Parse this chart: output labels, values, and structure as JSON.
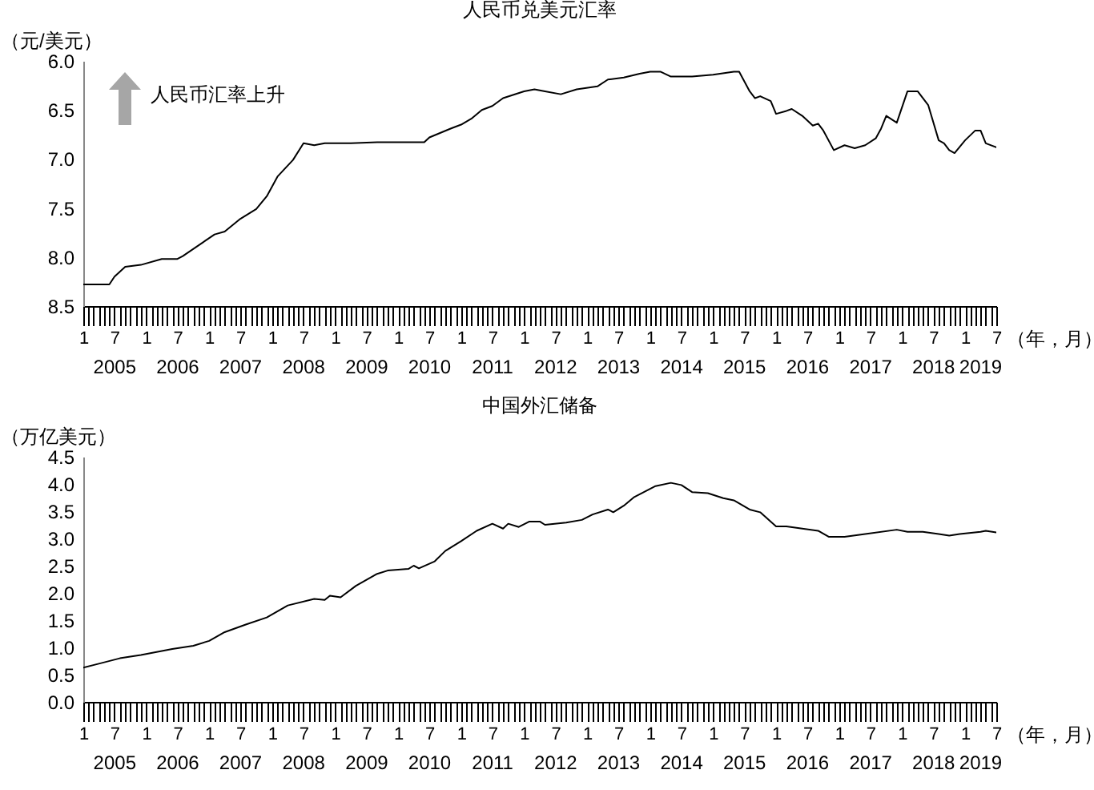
{
  "chart_data": [
    {
      "type": "line",
      "title": "人民币兑美元汇率",
      "ylabel": "（元/美元）",
      "xlabel": "（年，月）",
      "xlim": [
        "2005-01",
        "2019-07"
      ],
      "ylim": [
        8.5,
        6.0
      ],
      "yticks": [
        {
          "value": 6,
          "label": "6.0"
        },
        {
          "value": 6.5,
          "label": "6.5"
        },
        {
          "value": 7,
          "label": "7.0"
        },
        {
          "value": 7.5,
          "label": "7.5"
        },
        {
          "value": 8,
          "label": "8.0"
        },
        {
          "value": 8.5,
          "label": "8.5"
        }
      ],
      "xticks": [
        {
          "value": "2005-01",
          "label": "1"
        },
        {
          "value": "2005-02",
          "label": null
        },
        {
          "value": "2005-03",
          "label": null
        },
        {
          "value": "2005-04",
          "label": null
        },
        {
          "value": "2005-05",
          "label": null
        },
        {
          "value": "2005-06",
          "label": null
        },
        {
          "value": "2005-07",
          "label": "7"
        },
        {
          "value": "2005-08",
          "label": null
        },
        {
          "value": "2005-09",
          "label": null
        },
        {
          "value": "2005-10",
          "label": null
        },
        {
          "value": "2005-11",
          "label": null
        },
        {
          "value": "2005-12",
          "label": null
        },
        {
          "value": "2006-01",
          "label": "1"
        },
        {
          "value": "2006-02",
          "label": null
        },
        {
          "value": "2006-03",
          "label": null
        },
        {
          "value": "2006-04",
          "label": null
        },
        {
          "value": "2006-05",
          "label": null
        },
        {
          "value": "2006-06",
          "label": null
        },
        {
          "value": "2006-07",
          "label": "7"
        },
        {
          "value": "2006-08",
          "label": null
        },
        {
          "value": "2006-09",
          "label": null
        },
        {
          "value": "2006-10",
          "label": null
        },
        {
          "value": "2006-11",
          "label": null
        },
        {
          "value": "2006-12",
          "label": null
        },
        {
          "value": "2007-01",
          "label": "1"
        },
        {
          "value": "2007-02",
          "label": null
        },
        {
          "value": "2007-03",
          "label": null
        },
        {
          "value": "2007-04",
          "label": null
        },
        {
          "value": "2007-05",
          "label": null
        },
        {
          "value": "2007-06",
          "label": null
        },
        {
          "value": "2007-07",
          "label": "7"
        },
        {
          "value": "2007-08",
          "label": null
        },
        {
          "value": "2007-09",
          "label": null
        },
        {
          "value": "2007-10",
          "label": null
        },
        {
          "value": "2007-11",
          "label": null
        },
        {
          "value": "2007-12",
          "label": null
        },
        {
          "value": "2008-01",
          "label": "1"
        },
        {
          "value": "2008-02",
          "label": null
        },
        {
          "value": "2008-03",
          "label": null
        },
        {
          "value": "2008-04",
          "label": null
        },
        {
          "value": "2008-05",
          "label": null
        },
        {
          "value": "2008-06",
          "label": null
        },
        {
          "value": "2008-07",
          "label": "7"
        },
        {
          "value": "2008-08",
          "label": null
        },
        {
          "value": "2008-09",
          "label": null
        },
        {
          "value": "2008-10",
          "label": null
        },
        {
          "value": "2008-11",
          "label": null
        },
        {
          "value": "2008-12",
          "label": null
        },
        {
          "value": "2009-01",
          "label": "1"
        },
        {
          "value": "2009-02",
          "label": null
        },
        {
          "value": "2009-03",
          "label": null
        },
        {
          "value": "2009-04",
          "label": null
        },
        {
          "value": "2009-05",
          "label": null
        },
        {
          "value": "2009-06",
          "label": null
        },
        {
          "value": "2009-07",
          "label": "7"
        },
        {
          "value": "2009-08",
          "label": null
        },
        {
          "value": "2009-09",
          "label": null
        },
        {
          "value": "2009-10",
          "label": null
        },
        {
          "value": "2009-11",
          "label": null
        },
        {
          "value": "2009-12",
          "label": null
        },
        {
          "value": "2010-01",
          "label": "1"
        },
        {
          "value": "2010-02",
          "label": null
        },
        {
          "value": "2010-03",
          "label": null
        },
        {
          "value": "2010-04",
          "label": null
        },
        {
          "value": "2010-05",
          "label": null
        },
        {
          "value": "2010-06",
          "label": null
        },
        {
          "value": "2010-07",
          "label": "7"
        },
        {
          "value": "2010-08",
          "label": null
        },
        {
          "value": "2010-09",
          "label": null
        },
        {
          "value": "2010-10",
          "label": null
        },
        {
          "value": "2010-11",
          "label": null
        },
        {
          "value": "2010-12",
          "label": null
        },
        {
          "value": "2011-01",
          "label": "1"
        },
        {
          "value": "2011-02",
          "label": null
        },
        {
          "value": "2011-03",
          "label": null
        },
        {
          "value": "2011-04",
          "label": null
        },
        {
          "value": "2011-05",
          "label": null
        },
        {
          "value": "2011-06",
          "label": null
        },
        {
          "value": "2011-07",
          "label": "7"
        },
        {
          "value": "2011-08",
          "label": null
        },
        {
          "value": "2011-09",
          "label": null
        },
        {
          "value": "2011-10",
          "label": null
        },
        {
          "value": "2011-11",
          "label": null
        },
        {
          "value": "2011-12",
          "label": null
        },
        {
          "value": "2012-01",
          "label": "1"
        },
        {
          "value": "2012-02",
          "label": null
        },
        {
          "value": "2012-03",
          "label": null
        },
        {
          "value": "2012-04",
          "label": null
        },
        {
          "value": "2012-05",
          "label": null
        },
        {
          "value": "2012-06",
          "label": null
        },
        {
          "value": "2012-07",
          "label": "7"
        },
        {
          "value": "2012-08",
          "label": null
        },
        {
          "value": "2012-09",
          "label": null
        },
        {
          "value": "2012-10",
          "label": null
        },
        {
          "value": "2012-11",
          "label": null
        },
        {
          "value": "2012-12",
          "label": null
        },
        {
          "value": "2013-01",
          "label": "1"
        },
        {
          "value": "2013-02",
          "label": null
        },
        {
          "value": "2013-03",
          "label": null
        },
        {
          "value": "2013-04",
          "label": null
        },
        {
          "value": "2013-05",
          "label": null
        },
        {
          "value": "2013-06",
          "label": null
        },
        {
          "value": "2013-07",
          "label": "7"
        },
        {
          "value": "2013-08",
          "label": null
        },
        {
          "value": "2013-09",
          "label": null
        },
        {
          "value": "2013-10",
          "label": null
        },
        {
          "value": "2013-11",
          "label": null
        },
        {
          "value": "2013-12",
          "label": null
        },
        {
          "value": "2014-01",
          "label": "1"
        },
        {
          "value": "2014-02",
          "label": null
        },
        {
          "value": "2014-03",
          "label": null
        },
        {
          "value": "2014-04",
          "label": null
        },
        {
          "value": "2014-05",
          "label": null
        },
        {
          "value": "2014-06",
          "label": null
        },
        {
          "value": "2014-07",
          "label": "7"
        },
        {
          "value": "2014-08",
          "label": null
        },
        {
          "value": "2014-09",
          "label": null
        },
        {
          "value": "2014-10",
          "label": null
        },
        {
          "value": "2014-11",
          "label": null
        },
        {
          "value": "2014-12",
          "label": null
        },
        {
          "value": "2015-01",
          "label": "1"
        },
        {
          "value": "2015-02",
          "label": null
        },
        {
          "value": "2015-03",
          "label": null
        },
        {
          "value": "2015-04",
          "label": null
        },
        {
          "value": "2015-05",
          "label": null
        },
        {
          "value": "2015-06",
          "label": null
        },
        {
          "value": "2015-07",
          "label": "7"
        },
        {
          "value": "2015-08",
          "label": null
        },
        {
          "value": "2015-09",
          "label": null
        },
        {
          "value": "2015-10",
          "label": null
        },
        {
          "value": "2015-11",
          "label": null
        },
        {
          "value": "2015-12",
          "label": null
        },
        {
          "value": "2016-01",
          "label": "1"
        },
        {
          "value": "2016-02",
          "label": null
        },
        {
          "value": "2016-03",
          "label": null
        },
        {
          "value": "2016-04",
          "label": null
        },
        {
          "value": "2016-05",
          "label": null
        },
        {
          "value": "2016-06",
          "label": null
        },
        {
          "value": "2016-07",
          "label": "7"
        },
        {
          "value": "2016-08",
          "label": null
        },
        {
          "value": "2016-09",
          "label": null
        },
        {
          "value": "2016-10",
          "label": null
        },
        {
          "value": "2016-11",
          "label": null
        },
        {
          "value": "2016-12",
          "label": null
        },
        {
          "value": "2017-01",
          "label": "1"
        },
        {
          "value": "2017-02",
          "label": null
        },
        {
          "value": "2017-03",
          "label": null
        },
        {
          "value": "2017-04",
          "label": null
        },
        {
          "value": "2017-05",
          "label": null
        },
        {
          "value": "2017-06",
          "label": null
        },
        {
          "value": "2017-07",
          "label": "7"
        },
        {
          "value": "2017-08",
          "label": null
        },
        {
          "value": "2017-09",
          "label": null
        },
        {
          "value": "2017-10",
          "label": null
        },
        {
          "value": "2017-11",
          "label": null
        },
        {
          "value": "2017-12",
          "label": null
        },
        {
          "value": "2018-01",
          "label": "1"
        },
        {
          "value": "2018-02",
          "label": null
        },
        {
          "value": "2018-03",
          "label": null
        },
        {
          "value": "2018-04",
          "label": null
        },
        {
          "value": "2018-05",
          "label": null
        },
        {
          "value": "2018-06",
          "label": null
        },
        {
          "value": "2018-07",
          "label": "7"
        },
        {
          "value": "2018-08",
          "label": null
        },
        {
          "value": "2018-09",
          "label": null
        },
        {
          "value": "2018-10",
          "label": null
        },
        {
          "value": "2018-11",
          "label": null
        },
        {
          "value": "2018-12",
          "label": null
        },
        {
          "value": "2019-01",
          "label": "1"
        },
        {
          "value": "2019-02",
          "label": null
        },
        {
          "value": "2019-03",
          "label": null
        },
        {
          "value": "2019-04",
          "label": null
        },
        {
          "value": "2019-05",
          "label": null
        },
        {
          "value": "2019-06",
          "label": null
        },
        {
          "value": "2019-07",
          "label": "7"
        }
      ],
      "annotations": [
        "人民币汇率上升",
        "2005",
        "2006",
        "2007",
        "2008",
        "2009",
        "2010",
        "2011",
        "2012",
        "2013",
        "2014",
        "2015",
        "2016",
        "2017",
        "2018",
        "2019"
      ],
      "x": [
        "2005-01",
        "2005-06",
        "2005-07",
        "2005-09",
        "2005-12",
        "2006-04",
        "2006-07",
        "2006-08",
        "2007-02",
        "2007-04",
        "2007-07",
        "2007-10",
        "2007-12",
        "2008-02",
        "2008-05",
        "2008-07",
        "2008-09",
        "2008-11",
        "2009-04",
        "2009-09",
        "2010-06",
        "2010-07",
        "2010-11",
        "2011-01",
        "2011-03",
        "2011-05",
        "2011-07",
        "2011-09",
        "2012-01",
        "2012-03",
        "2012-05",
        "2012-08",
        "2012-11",
        "2013-03",
        "2013-05",
        "2013-08",
        "2013-11",
        "2014-01",
        "2014-03",
        "2014-05",
        "2014-09",
        "2015-01",
        "2015-05",
        "2015-06",
        "2015-08",
        "2015-09",
        "2015-10",
        "2015-12",
        "2016-01",
        "2016-03",
        "2016-04",
        "2016-06",
        "2016-08",
        "2016-09",
        "2016-10",
        "2016-12",
        "2017-02",
        "2017-04",
        "2017-06",
        "2017-08",
        "2017-09",
        "2017-10",
        "2017-12",
        "2018-02",
        "2018-04",
        "2018-06",
        "2018-08",
        "2018-09",
        "2018-10",
        "2018-11",
        "2019-01",
        "2019-03",
        "2019-04",
        "2019-05",
        "2019-07"
      ],
      "series": [
        {
          "color": "#000000",
          "values": [
            8.28,
            8.28,
            8.2,
            8.1,
            8.08,
            8.02,
            8.02,
            7.99,
            7.77,
            7.74,
            7.61,
            7.51,
            7.38,
            7.18,
            7.01,
            6.84,
            6.86,
            6.84,
            6.84,
            6.83,
            6.83,
            6.78,
            6.69,
            6.65,
            6.59,
            6.5,
            6.46,
            6.38,
            6.31,
            6.29,
            6.31,
            6.34,
            6.29,
            6.26,
            6.19,
            6.17,
            6.13,
            6.11,
            6.11,
            6.16,
            6.16,
            6.14,
            6.11,
            6.11,
            6.31,
            6.38,
            6.36,
            6.41,
            6.54,
            6.51,
            6.49,
            6.56,
            6.66,
            6.64,
            6.71,
            6.91,
            6.86,
            6.89,
            6.86,
            6.79,
            6.69,
            6.56,
            6.63,
            6.31,
            6.31,
            6.45,
            6.81,
            6.84,
            6.91,
            6.94,
            6.81,
            6.71,
            6.71,
            6.84,
            6.88
          ]
        }
      ]
    },
    {
      "type": "line",
      "title": "中国外汇储备",
      "ylabel": "（万亿美元）",
      "xlabel": "（年，月）",
      "xlim": [
        "2005-01",
        "2019-07"
      ],
      "ylim": [
        0,
        4.5
      ],
      "yticks": [
        {
          "value": 0,
          "label": "0.0"
        },
        {
          "value": 0.5,
          "label": "0.5"
        },
        {
          "value": 1,
          "label": "1.0"
        },
        {
          "value": 1.5,
          "label": "1.5"
        },
        {
          "value": 2,
          "label": "2.0"
        },
        {
          "value": 2.5,
          "label": "2.5"
        },
        {
          "value": 3,
          "label": "3.0"
        },
        {
          "value": 3.5,
          "label": "3.5"
        },
        {
          "value": 4,
          "label": "4.0"
        },
        {
          "value": 4.5,
          "label": "4.5"
        }
      ],
      "xticks": [
        {
          "value": "2005-01",
          "label": "1"
        },
        {
          "value": "2005-02",
          "label": null
        },
        {
          "value": "2005-03",
          "label": null
        },
        {
          "value": "2005-04",
          "label": null
        },
        {
          "value": "2005-05",
          "label": null
        },
        {
          "value": "2005-06",
          "label": null
        },
        {
          "value": "2005-07",
          "label": "7"
        },
        {
          "value": "2005-08",
          "label": null
        },
        {
          "value": "2005-09",
          "label": null
        },
        {
          "value": "2005-10",
          "label": null
        },
        {
          "value": "2005-11",
          "label": null
        },
        {
          "value": "2005-12",
          "label": null
        },
        {
          "value": "2006-01",
          "label": "1"
        },
        {
          "value": "2006-02",
          "label": null
        },
        {
          "value": "2006-03",
          "label": null
        },
        {
          "value": "2006-04",
          "label": null
        },
        {
          "value": "2006-05",
          "label": null
        },
        {
          "value": "2006-06",
          "label": null
        },
        {
          "value": "2006-07",
          "label": "7"
        },
        {
          "value": "2006-08",
          "label": null
        },
        {
          "value": "2006-09",
          "label": null
        },
        {
          "value": "2006-10",
          "label": null
        },
        {
          "value": "2006-11",
          "label": null
        },
        {
          "value": "2006-12",
          "label": null
        },
        {
          "value": "2007-01",
          "label": "1"
        },
        {
          "value": "2007-02",
          "label": null
        },
        {
          "value": "2007-03",
          "label": null
        },
        {
          "value": "2007-04",
          "label": null
        },
        {
          "value": "2007-05",
          "label": null
        },
        {
          "value": "2007-06",
          "label": null
        },
        {
          "value": "2007-07",
          "label": "7"
        },
        {
          "value": "2007-08",
          "label": null
        },
        {
          "value": "2007-09",
          "label": null
        },
        {
          "value": "2007-10",
          "label": null
        },
        {
          "value": "2007-11",
          "label": null
        },
        {
          "value": "2007-12",
          "label": null
        },
        {
          "value": "2008-01",
          "label": "1"
        },
        {
          "value": "2008-02",
          "label": null
        },
        {
          "value": "2008-03",
          "label": null
        },
        {
          "value": "2008-04",
          "label": null
        },
        {
          "value": "2008-05",
          "label": null
        },
        {
          "value": "2008-06",
          "label": null
        },
        {
          "value": "2008-07",
          "label": "7"
        },
        {
          "value": "2008-08",
          "label": null
        },
        {
          "value": "2008-09",
          "label": null
        },
        {
          "value": "2008-10",
          "label": null
        },
        {
          "value": "2008-11",
          "label": null
        },
        {
          "value": "2008-12",
          "label": null
        },
        {
          "value": "2009-01",
          "label": "1"
        },
        {
          "value": "2009-02",
          "label": null
        },
        {
          "value": "2009-03",
          "label": null
        },
        {
          "value": "2009-04",
          "label": null
        },
        {
          "value": "2009-05",
          "label": null
        },
        {
          "value": "2009-06",
          "label": null
        },
        {
          "value": "2009-07",
          "label": "7"
        },
        {
          "value": "2009-08",
          "label": null
        },
        {
          "value": "2009-09",
          "label": null
        },
        {
          "value": "2009-10",
          "label": null
        },
        {
          "value": "2009-11",
          "label": null
        },
        {
          "value": "2009-12",
          "label": null
        },
        {
          "value": "2010-01",
          "label": "1"
        },
        {
          "value": "2010-02",
          "label": null
        },
        {
          "value": "2010-03",
          "label": null
        },
        {
          "value": "2010-04",
          "label": null
        },
        {
          "value": "2010-05",
          "label": null
        },
        {
          "value": "2010-06",
          "label": null
        },
        {
          "value": "2010-07",
          "label": "7"
        },
        {
          "value": "2010-08",
          "label": null
        },
        {
          "value": "2010-09",
          "label": null
        },
        {
          "value": "2010-10",
          "label": null
        },
        {
          "value": "2010-11",
          "label": null
        },
        {
          "value": "2010-12",
          "label": null
        },
        {
          "value": "2011-01",
          "label": "1"
        },
        {
          "value": "2011-02",
          "label": null
        },
        {
          "value": "2011-03",
          "label": null
        },
        {
          "value": "2011-04",
          "label": null
        },
        {
          "value": "2011-05",
          "label": null
        },
        {
          "value": "2011-06",
          "label": null
        },
        {
          "value": "2011-07",
          "label": "7"
        },
        {
          "value": "2011-08",
          "label": null
        },
        {
          "value": "2011-09",
          "label": null
        },
        {
          "value": "2011-10",
          "label": null
        },
        {
          "value": "2011-11",
          "label": null
        },
        {
          "value": "2011-12",
          "label": null
        },
        {
          "value": "2012-01",
          "label": "1"
        },
        {
          "value": "2012-02",
          "label": null
        },
        {
          "value": "2012-03",
          "label": null
        },
        {
          "value": "2012-04",
          "label": null
        },
        {
          "value": "2012-05",
          "label": null
        },
        {
          "value": "2012-06",
          "label": null
        },
        {
          "value": "2012-07",
          "label": "7"
        },
        {
          "value": "2012-08",
          "label": null
        },
        {
          "value": "2012-09",
          "label": null
        },
        {
          "value": "2012-10",
          "label": null
        },
        {
          "value": "2012-11",
          "label": null
        },
        {
          "value": "2012-12",
          "label": null
        },
        {
          "value": "2013-01",
          "label": "1"
        },
        {
          "value": "2013-02",
          "label": null
        },
        {
          "value": "2013-03",
          "label": null
        },
        {
          "value": "2013-04",
          "label": null
        },
        {
          "value": "2013-05",
          "label": null
        },
        {
          "value": "2013-06",
          "label": null
        },
        {
          "value": "2013-07",
          "label": "7"
        },
        {
          "value": "2013-08",
          "label": null
        },
        {
          "value": "2013-09",
          "label": null
        },
        {
          "value": "2013-10",
          "label": null
        },
        {
          "value": "2013-11",
          "label": null
        },
        {
          "value": "2013-12",
          "label": null
        },
        {
          "value": "2014-01",
          "label": "1"
        },
        {
          "value": "2014-02",
          "label": null
        },
        {
          "value": "2014-03",
          "label": null
        },
        {
          "value": "2014-04",
          "label": null
        },
        {
          "value": "2014-05",
          "label": null
        },
        {
          "value": "2014-06",
          "label": null
        },
        {
          "value": "2014-07",
          "label": "7"
        },
        {
          "value": "2014-08",
          "label": null
        },
        {
          "value": "2014-09",
          "label": null
        },
        {
          "value": "2014-10",
          "label": null
        },
        {
          "value": "2014-11",
          "label": null
        },
        {
          "value": "2014-12",
          "label": null
        },
        {
          "value": "2015-01",
          "label": "1"
        },
        {
          "value": "2015-02",
          "label": null
        },
        {
          "value": "2015-03",
          "label": null
        },
        {
          "value": "2015-04",
          "label": null
        },
        {
          "value": "2015-05",
          "label": null
        },
        {
          "value": "2015-06",
          "label": null
        },
        {
          "value": "2015-07",
          "label": "7"
        },
        {
          "value": "2015-08",
          "label": null
        },
        {
          "value": "2015-09",
          "label": null
        },
        {
          "value": "2015-10",
          "label": null
        },
        {
          "value": "2015-11",
          "label": null
        },
        {
          "value": "2015-12",
          "label": null
        },
        {
          "value": "2016-01",
          "label": "1"
        },
        {
          "value": "2016-02",
          "label": null
        },
        {
          "value": "2016-03",
          "label": null
        },
        {
          "value": "2016-04",
          "label": null
        },
        {
          "value": "2016-05",
          "label": null
        },
        {
          "value": "2016-06",
          "label": null
        },
        {
          "value": "2016-07",
          "label": "7"
        },
        {
          "value": "2016-08",
          "label": null
        },
        {
          "value": "2016-09",
          "label": null
        },
        {
          "value": "2016-10",
          "label": null
        },
        {
          "value": "2016-11",
          "label": null
        },
        {
          "value": "2016-12",
          "label": null
        },
        {
          "value": "2017-01",
          "label": "1"
        },
        {
          "value": "2017-02",
          "label": null
        },
        {
          "value": "2017-03",
          "label": null
        },
        {
          "value": "2017-04",
          "label": null
        },
        {
          "value": "2017-05",
          "label": null
        },
        {
          "value": "2017-06",
          "label": null
        },
        {
          "value": "2017-07",
          "label": "7"
        },
        {
          "value": "2017-08",
          "label": null
        },
        {
          "value": "2017-09",
          "label": null
        },
        {
          "value": "2017-10",
          "label": null
        },
        {
          "value": "2017-11",
          "label": null
        },
        {
          "value": "2017-12",
          "label": null
        },
        {
          "value": "2018-01",
          "label": "1"
        },
        {
          "value": "2018-02",
          "label": null
        },
        {
          "value": "2018-03",
          "label": null
        },
        {
          "value": "2018-04",
          "label": null
        },
        {
          "value": "2018-05",
          "label": null
        },
        {
          "value": "2018-06",
          "label": null
        },
        {
          "value": "2018-07",
          "label": "7"
        },
        {
          "value": "2018-08",
          "label": null
        },
        {
          "value": "2018-09",
          "label": null
        },
        {
          "value": "2018-10",
          "label": null
        },
        {
          "value": "2018-11",
          "label": null
        },
        {
          "value": "2018-12",
          "label": null
        },
        {
          "value": "2019-01",
          "label": "1"
        },
        {
          "value": "2019-02",
          "label": null
        },
        {
          "value": "2019-03",
          "label": null
        },
        {
          "value": "2019-04",
          "label": null
        },
        {
          "value": "2019-05",
          "label": null
        },
        {
          "value": "2019-06",
          "label": null
        },
        {
          "value": "2019-07",
          "label": "7"
        }
      ],
      "annotations": [
        "2005",
        "2006",
        "2007",
        "2008",
        "2009",
        "2010",
        "2011",
        "2012",
        "2013",
        "2014",
        "2015",
        "2016",
        "2017",
        "2018",
        "2019"
      ],
      "x": [
        "2005-01",
        "2005-04",
        "2005-08",
        "2005-12",
        "2006-06",
        "2006-10",
        "2007-01",
        "2007-04",
        "2007-08",
        "2007-12",
        "2008-04",
        "2008-09",
        "2008-11",
        "2008-12",
        "2009-02",
        "2009-05",
        "2009-09",
        "2009-11",
        "2010-03",
        "2010-04",
        "2010-05",
        "2010-08",
        "2010-10",
        "2011-01",
        "2011-04",
        "2011-07",
        "2011-09",
        "2011-10",
        "2011-12",
        "2012-02",
        "2012-04",
        "2012-05",
        "2012-09",
        "2012-12",
        "2013-02",
        "2013-05",
        "2013-06",
        "2013-08",
        "2013-10",
        "2014-02",
        "2014-05",
        "2014-07",
        "2014-09",
        "2014-12",
        "2015-03",
        "2015-05",
        "2015-08",
        "2015-10",
        "2016-01",
        "2016-03",
        "2016-06",
        "2016-09",
        "2016-11",
        "2017-02",
        "2017-06",
        "2017-12",
        "2018-02",
        "2018-05",
        "2018-08",
        "2018-10",
        "2018-12",
        "2019-04",
        "2019-05",
        "2019-07"
      ],
      "series": [
        {
          "color": "#000000",
          "values": [
            0.63,
            0.7,
            0.8,
            0.86,
            0.97,
            1.03,
            1.12,
            1.28,
            1.42,
            1.55,
            1.77,
            1.89,
            1.87,
            1.95,
            1.92,
            2.13,
            2.35,
            2.41,
            2.44,
            2.5,
            2.45,
            2.58,
            2.77,
            2.95,
            3.14,
            3.27,
            3.18,
            3.27,
            3.21,
            3.31,
            3.31,
            3.25,
            3.29,
            3.34,
            3.44,
            3.53,
            3.48,
            3.6,
            3.76,
            3.96,
            4.02,
            3.98,
            3.85,
            3.83,
            3.74,
            3.7,
            3.53,
            3.48,
            3.22,
            3.22,
            3.18,
            3.14,
            3.03,
            3.03,
            3.08,
            3.16,
            3.12,
            3.12,
            3.08,
            3.05,
            3.08,
            3.12,
            3.14,
            3.11
          ]
        }
      ]
    }
  ]
}
